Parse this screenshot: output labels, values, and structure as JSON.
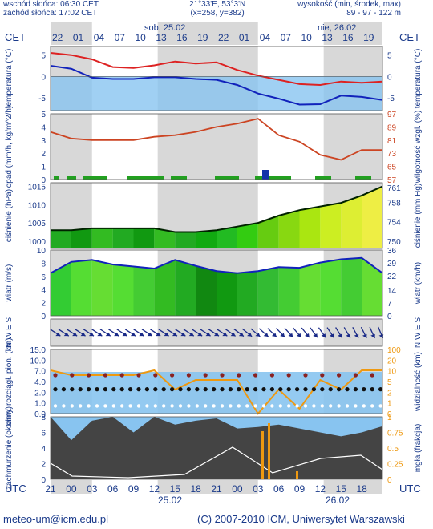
{
  "header": {
    "sunrise": "wschód słońca: 06:30 CET",
    "sunset": "zachód słońca: 17:02 CET",
    "coords": "21°33'E, 53°3'N",
    "grid": "(x=258, y=382)",
    "alt_label": "wysokość (min, środek, max)",
    "alt_values": "89 - 97 - 122 m"
  },
  "top_axis": {
    "tz": "CET",
    "day1": "sob, 25.02",
    "day2": "nie, 26.02",
    "hours": [
      "22",
      "01",
      "04",
      "07",
      "10",
      "13",
      "16",
      "19",
      "22",
      "01",
      "04",
      "07",
      "10",
      "13",
      "16",
      "19"
    ]
  },
  "bottom_axis": {
    "tz": "UTC",
    "hours": [
      "21",
      "00",
      "03",
      "06",
      "09",
      "12",
      "15",
      "18",
      "21",
      "00",
      "03",
      "06",
      "09",
      "12",
      "15",
      "18"
    ],
    "day1": "25.02",
    "day2": "26.02"
  },
  "footer": {
    "email": "meteo-um@icm.edu.pl",
    "copyright": "(C) 2007-2010 ICM, Uniwersytet Warszawski"
  },
  "colors": {
    "axis_text": "#1a3a8a",
    "night_shade": "#d8d8d8",
    "temp_red": "#dd2222",
    "temp_blue": "#1122bb",
    "sky_blue": "#88c4f0",
    "humidity": "#cc4422",
    "pressure_line": "#002200",
    "wind_line": "#1122bb",
    "vis_orange": "#ee9911",
    "cloud_dark": "#444444"
  },
  "panels": {
    "temperature": {
      "left_label": "temperatura (°C)",
      "right_label": "temperatura (°C)",
      "ticks_left": [
        "5",
        "0",
        "-5"
      ],
      "ticks_right": [
        "5",
        "0",
        "-5"
      ]
    },
    "precip": {
      "left_label": "opad (mm/h, kg/m^2/h)",
      "right_label": "wilgotność wzgl. (%)",
      "ticks_left": [
        "5",
        "4",
        "3",
        "2",
        "1",
        "0"
      ],
      "ticks_right": [
        "97",
        "89",
        "81",
        "73",
        "65",
        "57"
      ]
    },
    "pressure": {
      "left_label": "ciśnienie (hPa)",
      "right_label": "ciśnienie (mm Hg)",
      "ticks_left": [
        "1015",
        "1010",
        "1005",
        "1000"
      ],
      "ticks_right": [
        "761",
        "758",
        "754",
        "750"
      ]
    },
    "wind": {
      "left_label": "wiatr (m/s)",
      "right_label": "wiatr (km/h)",
      "ticks_left": [
        "10",
        "8",
        "6",
        "4",
        "2",
        "0"
      ],
      "ticks_right": [
        "36",
        "29",
        "22",
        "14",
        "7",
        "0"
      ]
    },
    "winddir": {
      "compass_left": "N W E S",
      "compass_right": "N W E S"
    },
    "visibility": {
      "left_label": "chm. rozciągł. pion. (km)",
      "right_label": "widzialność (km)",
      "ticks_left": [
        "15.0",
        "10.0",
        "7.0",
        "4.0",
        "2.0",
        "1.0",
        "0.0"
      ],
      "ticks_right": [
        "100",
        "20",
        "10",
        "5",
        "2",
        "1",
        "0"
      ]
    },
    "clouds": {
      "left_label": "zachmurzenie (oktanty)",
      "right_label": "mgła (frakcja)",
      "ticks_left": [
        "8",
        "6",
        "4",
        "2",
        "0"
      ],
      "ticks_right": [
        "1",
        "0.75",
        "0.5",
        "0.25",
        "0"
      ]
    }
  },
  "chart_data": [
    {
      "type": "line",
      "name_hint": "temperature",
      "x_hours_utc_from_start": [
        0,
        3,
        6,
        9,
        12,
        15,
        18,
        21,
        24,
        27,
        30,
        33,
        36,
        39,
        42,
        45,
        48
      ],
      "series": [
        {
          "values": [
            5.5,
            5.0,
            4.0,
            2.2,
            2.0,
            2.6,
            3.5,
            3.0,
            3.3,
            1.5,
            0.2,
            -0.8,
            -1.8,
            -2.0,
            -1.2,
            -1.5,
            -1.2
          ]
        },
        {
          "values": [
            2.5,
            1.8,
            -0.3,
            -0.6,
            -0.6,
            -0.2,
            -0.2,
            -0.6,
            -0.8,
            -2.0,
            -4.0,
            -5.2,
            -6.6,
            -6.5,
            -4.5,
            -4.8,
            -5.5
          ]
        }
      ],
      "ylim": [
        -8,
        7
      ]
    },
    {
      "type": "line",
      "name_hint": "humidity",
      "x_hours_utc_from_start": [
        0,
        3,
        6,
        9,
        12,
        15,
        18,
        21,
        24,
        27,
        30,
        33,
        36,
        39,
        42,
        45,
        48
      ],
      "series": [
        {
          "values": [
            86,
            82,
            81,
            81,
            81,
            83,
            84,
            86,
            89,
            91,
            94,
            84,
            80,
            72,
            69,
            75,
            75
          ]
        }
      ],
      "ylim": [
        57,
        97
      ]
    },
    {
      "type": "area",
      "name_hint": "pressure",
      "x_hours_utc_from_start": [
        0,
        3,
        6,
        9,
        12,
        15,
        18,
        21,
        24,
        27,
        30,
        33,
        36,
        39,
        42,
        45,
        48
      ],
      "series": [
        {
          "values": [
            1003,
            1003,
            1003.5,
            1003.5,
            1003.5,
            1003.5,
            1002.5,
            1002.5,
            1003,
            1004,
            1005,
            1007,
            1008.5,
            1009.5,
            1010.5,
            1012.5,
            1015
          ]
        }
      ],
      "ylim": [
        998,
        1016
      ]
    },
    {
      "type": "area",
      "name_hint": "wind",
      "x_hours_utc_from_start": [
        0,
        3,
        6,
        9,
        12,
        15,
        18,
        21,
        24,
        27,
        30,
        33,
        36,
        39,
        42,
        45,
        48
      ],
      "series": [
        {
          "values": [
            6.5,
            8.2,
            8.5,
            7.8,
            7.5,
            7.2,
            8.5,
            7.6,
            6.8,
            6.5,
            6.8,
            7.4,
            7.3,
            8.1,
            8.6,
            8.8,
            6.5
          ]
        }
      ],
      "ylim": [
        0,
        10
      ]
    },
    {
      "type": "line",
      "name_hint": "visibility",
      "x_hours_utc_from_start": [
        0,
        3,
        6,
        9,
        12,
        15,
        18,
        21,
        24,
        27,
        30,
        33,
        36,
        39,
        42,
        45,
        48
      ],
      "series": [
        {
          "values": [
            18,
            16,
            16,
            16,
            16,
            18,
            10,
            14,
            14,
            14,
            0,
            10,
            2,
            14,
            10,
            18,
            18
          ]
        }
      ],
      "ylim": [
        0,
        100
      ]
    },
    {
      "type": "area",
      "name_hint": "clouds",
      "x_hours_utc_from_start": [
        0,
        3,
        6,
        9,
        12,
        15,
        18,
        21,
        24,
        27,
        30,
        33,
        36,
        39,
        42,
        45,
        48
      ],
      "series": [
        {
          "values": [
            8,
            5,
            7.5,
            8,
            6,
            8,
            7,
            7.5,
            7.8,
            6.5,
            6.7,
            7.0,
            6.5,
            6.0,
            5.5,
            6.0,
            6.8
          ]
        }
      ],
      "ylim": [
        0,
        8
      ]
    }
  ]
}
